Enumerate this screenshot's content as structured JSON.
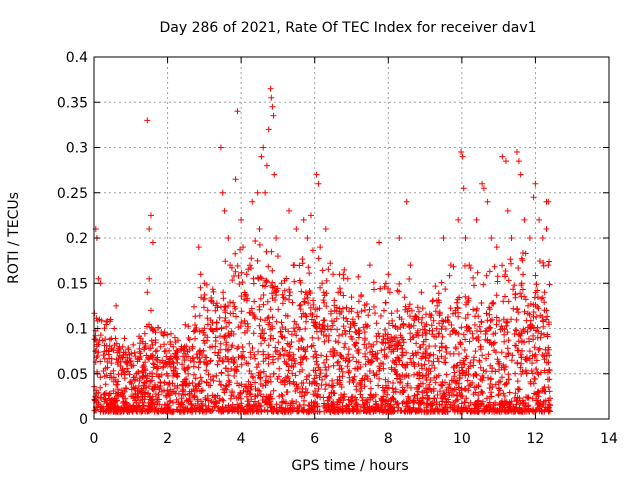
{
  "chart_data": {
    "type": "scatter",
    "title": "Day 286 of 2021, Rate Of TEC Index for receiver dav1",
    "xlabel": "GPS time / hours",
    "ylabel": "ROTI / TECUs",
    "xlim": [
      0,
      14
    ],
    "ylim": [
      0,
      0.4
    ],
    "xticks": [
      0,
      2,
      4,
      6,
      8,
      10,
      12,
      14
    ],
    "yticks": [
      0,
      0.05,
      0.1,
      0.15,
      0.2,
      0.25,
      0.3,
      0.35,
      0.4
    ],
    "xtick_labels": [
      "0",
      "2",
      "4",
      "6",
      "8",
      "10",
      "12",
      "14"
    ],
    "ytick_labels": [
      "0",
      "0.05",
      "0.1",
      "0.15",
      "0.2",
      "0.25",
      "0.3",
      "0.35",
      "0.4"
    ],
    "grid": true,
    "marker": "+",
    "color": "#ff0000",
    "series": [
      {
        "name": "ROTI",
        "points": [
          [
            0.05,
            0.21
          ],
          [
            0.08,
            0.2
          ],
          [
            0.12,
            0.155
          ],
          [
            0.18,
            0.15
          ],
          [
            0.1,
            0.1
          ],
          [
            0.15,
            0.11
          ],
          [
            0.45,
            0.11
          ],
          [
            0.55,
            0.1
          ],
          [
            0.6,
            0.125
          ],
          [
            1.45,
            0.33
          ],
          [
            1.55,
            0.225
          ],
          [
            1.5,
            0.21
          ],
          [
            1.6,
            0.195
          ],
          [
            1.5,
            0.155
          ],
          [
            1.45,
            0.14
          ],
          [
            1.55,
            0.12
          ],
          [
            2.2,
            0.09
          ],
          [
            2.85,
            0.19
          ],
          [
            2.9,
            0.16
          ],
          [
            3.0,
            0.15
          ],
          [
            3.2,
            0.13
          ],
          [
            3.45,
            0.3
          ],
          [
            3.5,
            0.25
          ],
          [
            3.55,
            0.23
          ],
          [
            3.65,
            0.2
          ],
          [
            3.7,
            0.17
          ],
          [
            3.85,
            0.265
          ],
          [
            3.9,
            0.34
          ],
          [
            4.0,
            0.22
          ],
          [
            4.05,
            0.19
          ],
          [
            4.15,
            0.16
          ],
          [
            4.3,
            0.24
          ],
          [
            4.45,
            0.25
          ],
          [
            4.5,
            0.21
          ],
          [
            4.55,
            0.29
          ],
          [
            4.6,
            0.3
          ],
          [
            4.65,
            0.25
          ],
          [
            4.7,
            0.28
          ],
          [
            4.75,
            0.32
          ],
          [
            4.8,
            0.365
          ],
          [
            4.82,
            0.355
          ],
          [
            4.85,
            0.345
          ],
          [
            4.88,
            0.335
          ],
          [
            4.9,
            0.27
          ],
          [
            4.95,
            0.2
          ],
          [
            5.0,
            0.18
          ],
          [
            5.1,
            0.15
          ],
          [
            5.3,
            0.23
          ],
          [
            5.5,
            0.21
          ],
          [
            5.7,
            0.22
          ],
          [
            5.8,
            0.2
          ],
          [
            5.9,
            0.225
          ],
          [
            6.05,
            0.27
          ],
          [
            6.1,
            0.26
          ],
          [
            6.15,
            0.19
          ],
          [
            6.2,
            0.15
          ],
          [
            6.3,
            0.21
          ],
          [
            6.5,
            0.16
          ],
          [
            6.7,
            0.14
          ],
          [
            6.9,
            0.155
          ],
          [
            7.2,
            0.13
          ],
          [
            7.5,
            0.17
          ],
          [
            7.75,
            0.195
          ],
          [
            8.0,
            0.16
          ],
          [
            8.3,
            0.2
          ],
          [
            8.5,
            0.24
          ],
          [
            8.6,
            0.17
          ],
          [
            8.9,
            0.14
          ],
          [
            9.2,
            0.13
          ],
          [
            9.5,
            0.2
          ],
          [
            9.7,
            0.17
          ],
          [
            9.9,
            0.22
          ],
          [
            9.98,
            0.295
          ],
          [
            10.02,
            0.29
          ],
          [
            10.05,
            0.255
          ],
          [
            10.1,
            0.2
          ],
          [
            10.2,
            0.17
          ],
          [
            10.4,
            0.22
          ],
          [
            10.55,
            0.26
          ],
          [
            10.6,
            0.255
          ],
          [
            10.7,
            0.24
          ],
          [
            10.8,
            0.2
          ],
          [
            10.95,
            0.19
          ],
          [
            11.1,
            0.29
          ],
          [
            11.2,
            0.285
          ],
          [
            11.25,
            0.23
          ],
          [
            11.35,
            0.2
          ],
          [
            11.5,
            0.295
          ],
          [
            11.55,
            0.285
          ],
          [
            11.6,
            0.27
          ],
          [
            11.7,
            0.22
          ],
          [
            11.85,
            0.2
          ],
          [
            11.95,
            0.245
          ],
          [
            12.0,
            0.26
          ],
          [
            12.1,
            0.22
          ],
          [
            12.2,
            0.2
          ],
          [
            12.3,
            0.24
          ],
          [
            12.35,
            0.24
          ],
          [
            12.3,
            0.21
          ],
          [
            12.35,
            0.17
          ],
          [
            12.25,
            0.14
          ],
          [
            12.3,
            0.12
          ]
        ]
      }
    ],
    "dense_envelope_note": "Bulk points 0.01-0.12 across 0-12.4 h",
    "envelope": [
      [
        0.0,
        0.09
      ],
      [
        0.5,
        0.08
      ],
      [
        1.0,
        0.06
      ],
      [
        1.5,
        0.08
      ],
      [
        2.0,
        0.07
      ],
      [
        2.5,
        0.08
      ],
      [
        3.0,
        0.12
      ],
      [
        3.5,
        0.13
      ],
      [
        4.0,
        0.14
      ],
      [
        4.5,
        0.15
      ],
      [
        5.0,
        0.14
      ],
      [
        5.5,
        0.13
      ],
      [
        6.0,
        0.14
      ],
      [
        6.5,
        0.13
      ],
      [
        7.0,
        0.12
      ],
      [
        7.5,
        0.12
      ],
      [
        8.0,
        0.11
      ],
      [
        8.5,
        0.12
      ],
      [
        9.0,
        0.1
      ],
      [
        9.5,
        0.12
      ],
      [
        10.0,
        0.13
      ],
      [
        10.5,
        0.12
      ],
      [
        11.0,
        0.13
      ],
      [
        11.5,
        0.14
      ],
      [
        12.0,
        0.14
      ],
      [
        12.4,
        0.13
      ]
    ]
  }
}
